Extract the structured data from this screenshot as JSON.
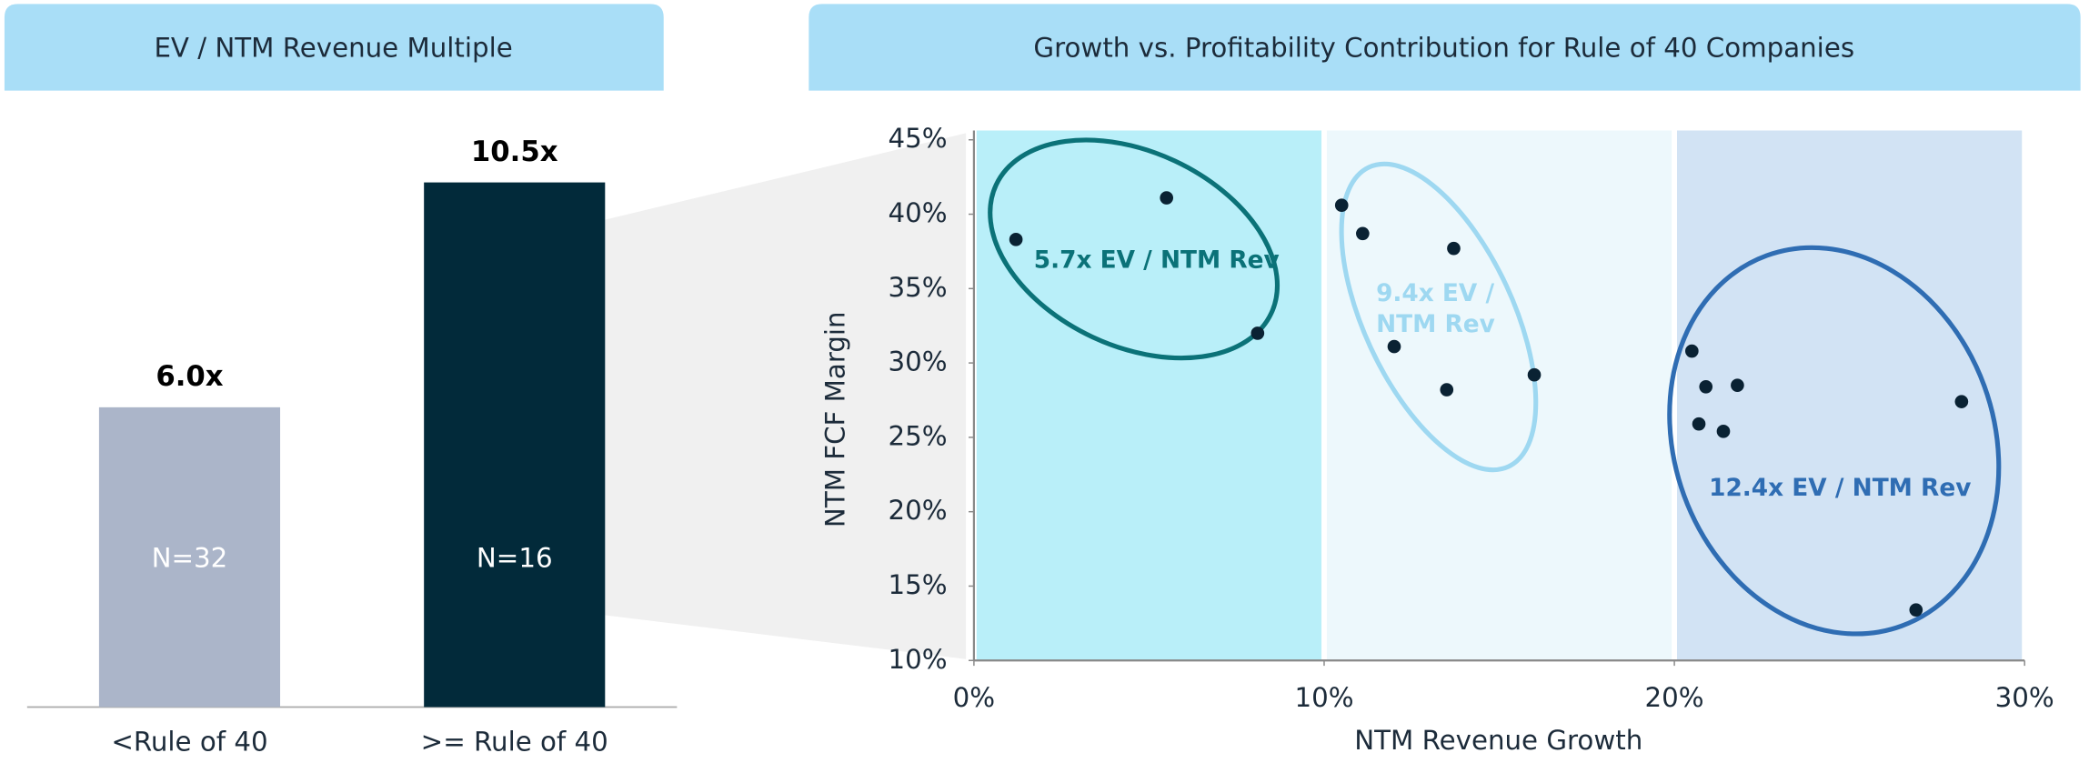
{
  "chart_data": [
    {
      "type": "bar",
      "title": "EV / NTM Revenue Multiple",
      "categories": [
        "<Rule of 40",
        ">= Rule of 40"
      ],
      "values": [
        6.0,
        10.5
      ],
      "value_labels": [
        "6.0x",
        "10.5x"
      ],
      "annotations": [
        "N=32",
        "N=16"
      ],
      "colors": [
        "#abb5c9",
        "#022a3a"
      ]
    },
    {
      "type": "scatter",
      "title": "Growth vs. Profitability Contribution for Rule of 40 Companies",
      "xlabel": "NTM Revenue Growth",
      "ylabel": "NTM FCF Margin",
      "x": [
        1.2,
        5.5,
        8.1,
        10.5,
        11.1,
        13.7,
        12.0,
        13.5,
        16.0,
        20.5,
        20.9,
        21.8,
        20.7,
        21.4,
        28.2,
        26.9
      ],
      "values": [
        38.3,
        41.1,
        32.0,
        40.6,
        38.7,
        37.7,
        31.1,
        28.2,
        29.2,
        30.8,
        28.4,
        28.5,
        25.9,
        25.4,
        27.4,
        13.4
      ],
      "color": "#0a2233",
      "xlim": [
        0,
        30
      ],
      "ylim": [
        10,
        45
      ],
      "xticks": [
        {
          "value": 0,
          "label": "0%"
        },
        {
          "value": 10,
          "label": "10%"
        },
        {
          "value": 20,
          "label": "20%"
        },
        {
          "value": 30,
          "label": "30%"
        }
      ],
      "yticks": [
        {
          "value": 10,
          "label": "10%"
        },
        {
          "value": 15,
          "label": "15%"
        },
        {
          "value": 20,
          "label": "20%"
        },
        {
          "value": 25,
          "label": "25%"
        },
        {
          "value": 30,
          "label": "30%"
        },
        {
          "value": 35,
          "label": "35%"
        },
        {
          "value": 40,
          "label": "40%"
        },
        {
          "value": 45,
          "label": "45%"
        }
      ],
      "bands": [
        {
          "x": [
            0,
            10
          ],
          "color": "#b9eff9"
        },
        {
          "x": [
            10,
            20
          ],
          "color": "#edf8fc"
        },
        {
          "x": [
            20,
            30
          ],
          "color": "#d2e3f4"
        }
      ],
      "annotations": [
        {
          "lines": [
            "5.7x EV / NTM Rev"
          ],
          "color": "#0b7278"
        },
        {
          "lines": [
            "9.4x EV /",
            "NTM Rev"
          ],
          "color": "#9ed8f1"
        },
        {
          "lines": [
            "12.4x EV / NTM Rev"
          ],
          "color": "#2f6db3"
        }
      ]
    }
  ]
}
